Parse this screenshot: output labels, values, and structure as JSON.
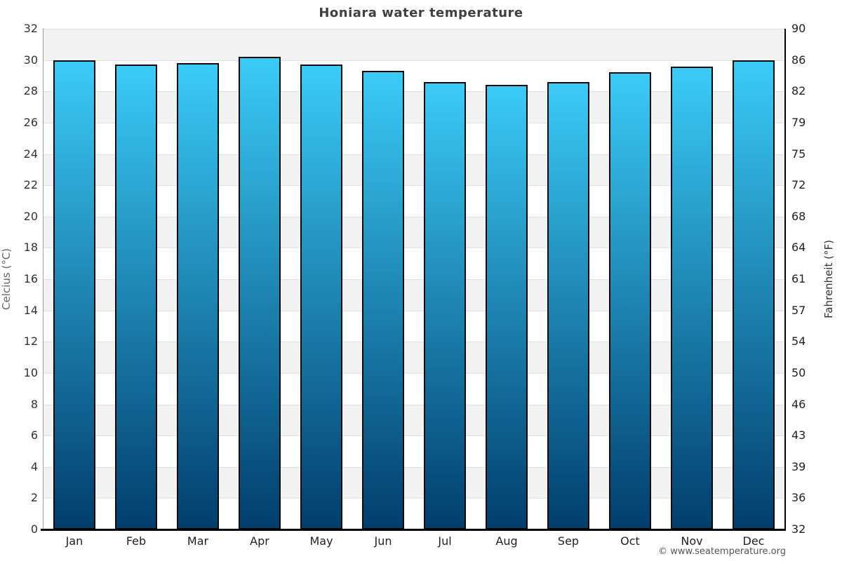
{
  "page": {
    "title": "Honiara water temperature",
    "footer": "© www.seatemperature.org"
  },
  "chart_data": {
    "type": "bar",
    "title": "Honiara water temperature",
    "categories": [
      "Jan",
      "Feb",
      "Mar",
      "Apr",
      "May",
      "Jun",
      "Jul",
      "Aug",
      "Sep",
      "Oct",
      "Nov",
      "Dec"
    ],
    "values": [
      30.0,
      29.7,
      29.8,
      30.2,
      29.7,
      29.3,
      28.6,
      28.4,
      28.6,
      29.2,
      29.6,
      30.0
    ],
    "unit": "°C",
    "xlabel": "",
    "ylabel_left": "Celcius (°C)",
    "ylabel_right": "Fahrenheit (°F)",
    "ylim": [
      0,
      32
    ],
    "yticks_celsius": [
      0,
      2,
      4,
      6,
      8,
      10,
      12,
      14,
      16,
      18,
      20,
      22,
      24,
      26,
      28,
      30,
      32
    ],
    "yticks_fahrenheit_labels": [
      "32",
      "36",
      "39",
      "43",
      "46",
      "50",
      "54",
      "57",
      "61",
      "64",
      "68",
      "72",
      "75",
      "79",
      "82",
      "86",
      "90"
    ],
    "legend": "none",
    "grid": "horizontal alternating bands of 2°C",
    "colors": {
      "bar_gradient_top": "#3bcbf7",
      "bar_gradient_bottom": "#013e6d",
      "bar_border": "#0a0a0a",
      "band_gray": "#f2f2f2",
      "band_white": "#ffffff",
      "gridline": "#e2e2e2",
      "title_text": "#404040",
      "tick_text": "#333333",
      "footer_text": "#555555"
    }
  }
}
